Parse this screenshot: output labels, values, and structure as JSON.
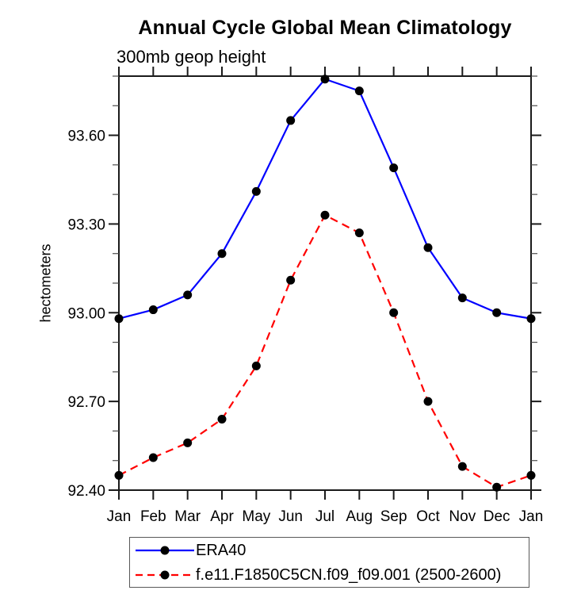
{
  "title": "Annual Cycle Global Mean Climatology",
  "subtitle": "300mb geop height",
  "y_axis_title": "hectometers",
  "chart_data": {
    "type": "line",
    "categories": [
      "Jan",
      "Feb",
      "Mar",
      "Apr",
      "May",
      "Jun",
      "Jul",
      "Aug",
      "Sep",
      "Oct",
      "Nov",
      "Dec",
      "Jan"
    ],
    "series": [
      {
        "name": "ERA40",
        "color": "#0000ff",
        "line_style": "solid",
        "marker": "filled-circle",
        "marker_color": "#000000",
        "values": [
          92.98,
          93.01,
          93.06,
          93.2,
          93.41,
          93.65,
          93.79,
          93.75,
          93.49,
          93.22,
          93.05,
          93.0,
          92.98
        ]
      },
      {
        "name": "f.e11.F1850C5CN.f09_f09.001 (2500-2600)",
        "color": "#ff0000",
        "line_style": "dashed",
        "marker": "filled-circle",
        "marker_color": "#000000",
        "values": [
          92.45,
          92.51,
          92.56,
          92.64,
          92.82,
          93.11,
          93.33,
          93.27,
          93.0,
          92.7,
          92.48,
          92.41,
          92.45
        ]
      }
    ],
    "xlabel": "",
    "ylabel": "hectometers",
    "ylim": [
      92.4,
      93.8
    ],
    "y_major_ticks": [
      92.4,
      92.7,
      93.0,
      93.3,
      93.6
    ],
    "y_minor_step": 0.1,
    "grid": false,
    "legend_position": "bottom-left",
    "axis_color": "#1a1a1a",
    "minor_tick_color": "#4d4d4d"
  }
}
